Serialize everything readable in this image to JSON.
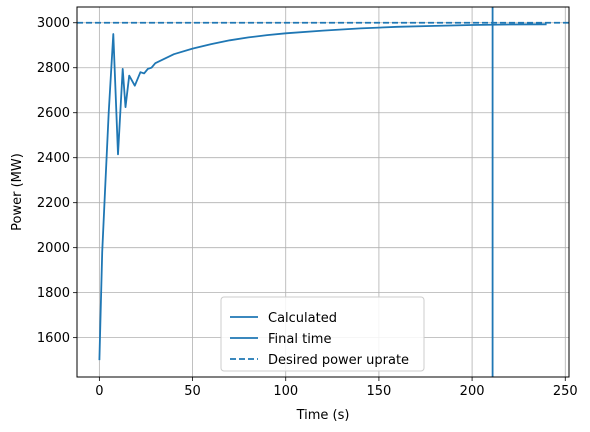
{
  "chart_data": {
    "type": "line",
    "title": "",
    "xlabel": "Time (s)",
    "ylabel": "Power (MW)",
    "xlim": [
      -12,
      252
    ],
    "ylim": [
      1425,
      3070
    ],
    "x_ticks": [
      0,
      50,
      100,
      150,
      200,
      250
    ],
    "y_ticks": [
      1600,
      1800,
      2000,
      2200,
      2400,
      2600,
      2800,
      3000
    ],
    "grid": true,
    "legend_placement": "bottom-center",
    "color": "#1f77b4",
    "series": [
      {
        "name": "Calculated",
        "style": "solid",
        "x": [
          0,
          1.5,
          3,
          5,
          7.5,
          10,
          12.5,
          14,
          16,
          19,
          22,
          24,
          26,
          28,
          30,
          35,
          40,
          50,
          60,
          70,
          80,
          90,
          100,
          120,
          140,
          160,
          180,
          200,
          220,
          240
        ],
        "y": [
          1500,
          1980,
          2250,
          2600,
          2950,
          2415,
          2795,
          2625,
          2765,
          2720,
          2780,
          2775,
          2795,
          2800,
          2820,
          2840,
          2860,
          2885,
          2905,
          2922,
          2935,
          2945,
          2953,
          2965,
          2975,
          2982,
          2986,
          2990,
          2992,
          2993
        ]
      },
      {
        "name": "Final time",
        "style": "solid",
        "vertical_x": 211
      },
      {
        "name": "Desired power uprate",
        "style": "dashed",
        "horizontal_y": 3000
      }
    ],
    "legend": [
      "Calculated",
      "Final time",
      "Desired power uprate"
    ]
  }
}
